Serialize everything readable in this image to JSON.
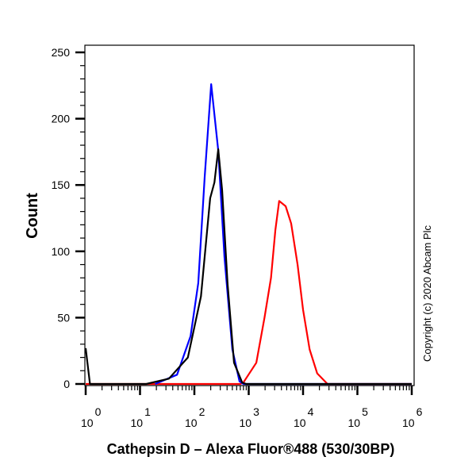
{
  "chart_data": {
    "type": "line",
    "title": "",
    "xlabel": "Cathepsin D – Alexa Fluor®488 (530/30BP)",
    "ylabel": "Count",
    "xscale": "log",
    "xlim": [
      1,
      1000000
    ],
    "ylim": [
      0,
      250
    ],
    "yticks": [
      0,
      50,
      100,
      150,
      200,
      250
    ],
    "xticks": [
      {
        "base": "10",
        "exp": "0"
      },
      {
        "base": "10",
        "exp": "1"
      },
      {
        "base": "10",
        "exp": "2"
      },
      {
        "base": "10",
        "exp": "3"
      },
      {
        "base": "10",
        "exp": "4"
      },
      {
        "base": "10",
        "exp": "5"
      },
      {
        "base": "10",
        "exp": "6"
      }
    ],
    "grid": false,
    "annotation": "Copyright (c) 2020 Abcam Plc",
    "series": [
      {
        "color": "#0000ff",
        "points": [
          [
            19,
            0
          ],
          [
            48,
            7
          ],
          [
            85,
            36
          ],
          [
            118,
            76
          ],
          [
            155,
            156
          ],
          [
            204,
            226
          ],
          [
            275,
            176
          ],
          [
            357,
            96
          ],
          [
            501,
            26
          ],
          [
            676,
            2
          ],
          [
            800,
            0
          ],
          [
            1000000,
            0
          ]
        ]
      },
      {
        "color": "#000000",
        "points": [
          [
            1,
            27
          ],
          [
            1.2,
            0
          ],
          [
            13,
            0
          ],
          [
            34,
            4
          ],
          [
            76,
            20
          ],
          [
            132,
            66
          ],
          [
            195,
            140
          ],
          [
            234,
            152
          ],
          [
            275,
            177
          ],
          [
            324,
            146
          ],
          [
            407,
            76
          ],
          [
            537,
            16
          ],
          [
            759,
            1
          ],
          [
            900,
            0
          ],
          [
            1000000,
            0
          ]
        ]
      },
      {
        "color": "#ff0000",
        "points": [
          [
            1,
            0
          ],
          [
            700,
            0
          ],
          [
            795,
            1
          ],
          [
            1380,
            16
          ],
          [
            1950,
            50
          ],
          [
            2570,
            80
          ],
          [
            3090,
            116
          ],
          [
            3630,
            138
          ],
          [
            4790,
            134
          ],
          [
            6030,
            121
          ],
          [
            7940,
            90
          ],
          [
            10000,
            56
          ],
          [
            13200,
            26
          ],
          [
            18200,
            8
          ],
          [
            28200,
            0
          ],
          [
            1000000,
            0
          ]
        ]
      }
    ]
  }
}
